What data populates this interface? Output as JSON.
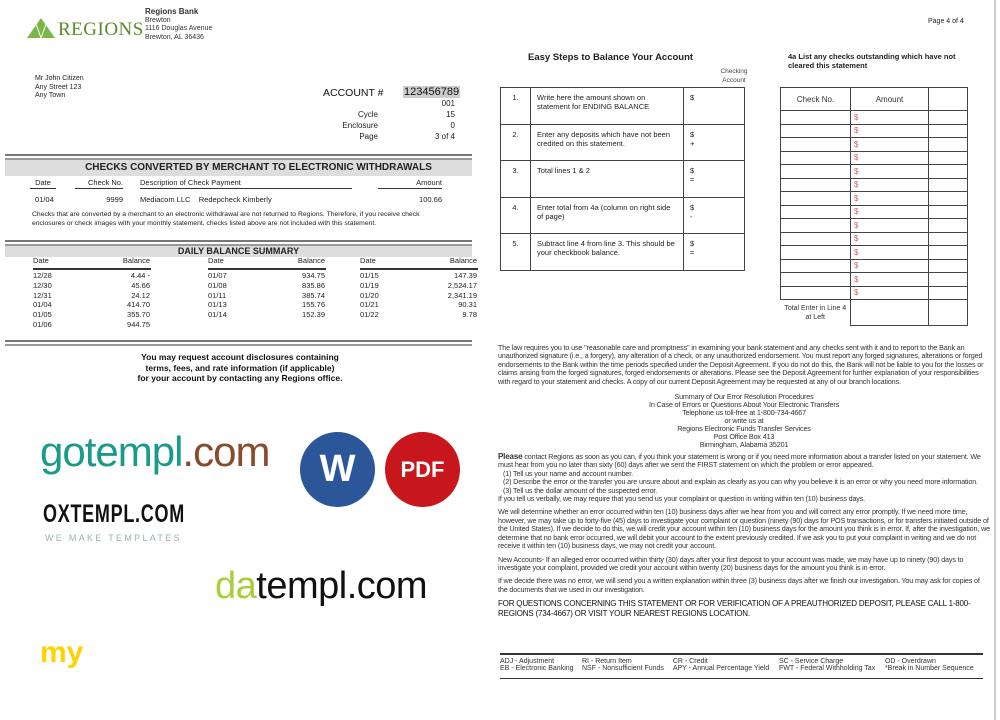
{
  "bank": {
    "logo_text": "REGIONS",
    "name": "Regions Bank",
    "branch": "Brewton",
    "street": "1116 Douglas Avenue",
    "city": "Brewton, AL 36436",
    "brand_color": "#7ab648"
  },
  "customer": {
    "name": "Mr John Citizen",
    "street": "Any Street 123",
    "town": "Any Town"
  },
  "account": {
    "label": "ACCOUNT #",
    "number": "123456789",
    "suffix": "001",
    "cycle_label": "Cycle",
    "cycle": "15",
    "enclosure_label": "Enclosure",
    "enclosure": "0",
    "page_label": "Page",
    "page": "3 of 4"
  },
  "checks": {
    "title": "CHECKS CONVERTED BY MERCHANT TO ELECTRONIC WITHDRAWALS",
    "headers": [
      "Date",
      "Check No.",
      "Description of Check Payment",
      "Amount"
    ],
    "rows": [
      {
        "date": "01/04",
        "check": "9999",
        "desc": "Mediacom LLC    Redepcheck Kimberly",
        "amount": "100.66"
      }
    ],
    "note": "Checks that are converted by a merchant to an electronic withdrawal are not returned to Regions. Therefore, if you receive check enclosures or check images with your monthly statement, checks listed above are not included with this statement."
  },
  "daily": {
    "title": "DAILY BALANCE SUMMARY",
    "date_label": "Date",
    "balance_label": "Balance",
    "columns": [
      [
        [
          "12/28",
          "4.44 -"
        ],
        [
          "12/30",
          "45.66"
        ],
        [
          "12/31",
          "24.12"
        ],
        [
          "01/04",
          "414.70"
        ],
        [
          "01/05",
          "355.70"
        ],
        [
          "01/06",
          "944.75"
        ]
      ],
      [
        [
          "01/07",
          "934.75"
        ],
        [
          "01/08",
          "835.86"
        ],
        [
          "01/11",
          "385.74"
        ],
        [
          "01/13",
          "155.76"
        ],
        [
          "01/14",
          "152.39"
        ]
      ],
      [
        [
          "01/15",
          "147.39"
        ],
        [
          "01/19",
          "2,524.17"
        ],
        [
          "01/20",
          "2,341.19"
        ],
        [
          "01/21",
          "90.31"
        ],
        [
          "01/22",
          "9.78"
        ]
      ]
    ]
  },
  "disclosure": [
    "You may request account disclosures containing",
    "terms, fees, and rate information (if applicable)",
    "for your account by contacting any Regions office."
  ],
  "steps": {
    "title": "Easy Steps to Balance Your Account",
    "col_label": "Checking Account",
    "rows": [
      {
        "n": "1.",
        "text": "Write here the amount shown on statement for ENDING BALANCE",
        "sign": ""
      },
      {
        "n": "2.",
        "text": "Enter any deposits which have not been credited on this statement.",
        "sign": "+"
      },
      {
        "n": "3.",
        "text": "Total lines 1 & 2",
        "sign": "="
      },
      {
        "n": "4.",
        "text": "Enter total from 4a (column on right side of page)",
        "sign": "-"
      },
      {
        "n": "5.",
        "text": "Subtract line 4 from line 3. This should be your checkbook balance.",
        "sign": "="
      }
    ],
    "currency": "$"
  },
  "page_right": "Page 4 of 4",
  "outstanding": {
    "title": "4a List any checks outstanding which have not cleared this statement",
    "col_check": "Check No.",
    "col_amount": "Amount",
    "total_label": "Total Enter in Line 4 at Left"
  },
  "legal": {
    "law": "The law requires you to use \"reasonable care and promptness\" in examining your bank statement and any checks sent with it and to report to the Bank an unauthorized signature (i.e., a forgery), any alteration of a check, or any unauthorized endorsement. You must report any forged signatures, alterations or forged endorsements to the Bank within the time periods specified under the Deposit Agreement. If you do not do this, the Bank will not be liable to you for the losses or claims arising from the forged signatures, forged endorsements or alterations. Please see the Deposit Agreement for further explanation of your responsibilities with regard to your statement and checks. A copy of our current Deposit Agreement may be requested at any of our branch locations.",
    "summary": [
      "Summary of Our Error Resolution Procedures",
      "In Case of Errors or Questions About Your Electronic Transfers",
      "Telephone us toll-free at 1-800-734-4667",
      "or write us at",
      "Regions Electronic Funds Transfer Services",
      "Post Office Box 413",
      "Birmingham, Alabama 35201"
    ],
    "please_lead": "Please",
    "please": "contact Regions as soon as you can, if you think your statement is wrong or if you need more information about a transfer listed on your statement. We must hear from you no later than sixty (60) days after we sent the FIRST statement on which the problem or error appeared.",
    "list": [
      "(1)  Tell us your name and account number.",
      "(2)  Describe the error or the transfer you are unsure about and explain as clearly as you can why you believe it is an error or why you need more information.",
      "(3)  Tell us the dollar amount of the suspected error."
    ],
    "verbal": "If you tell us verbally, we may require that you send us your complaint or question in writing within ten (10) business days.",
    "determine": "We will determine whether an error occurred within ten (10) business days after we hear from you and will correct any error promptly. If we need more time, however, we may take up to forty-five (45) days to investigate your complaint or question (ninety (90) days for POS transactions, or for transfers initiated outside of the United States). If we decide to do this, we will credit your account within ten (10) business days for the amount you think is in error. If, after the investigation, we determine that no bank error occurred, we will debit your account to the extent previously credited. If we ask you to put your complaint in writing and we do not receive it within ten (10) business days, we may not credit your account.",
    "new_accounts": "New Accounts- If an alleged error occurred within thirty (30) days after your first deposit to your account was made, we may have up to ninety (90) days to investigate your complaint, provided we credit your account within twenty (20) business days for the amount you think is in error.",
    "no_error": "If we decide there was no error, we will send you a written explanation within three (3) business days after we finish our investigation. You may ask for copies of the documents that we used in our investigation.",
    "questions": "FOR QUESTIONS CONCERNING THIS STATEMENT OR FOR VERIFICATION OF A PREAUTHORIZED DEPOSIT, PLEASE CALL 1-800-REGIONS (734-4667) OR VISIT YOUR NEAREST REGIONS LOCATION."
  },
  "legend": [
    [
      "ADJ - Adjustment",
      "RI - Return Item",
      "CR - Credit",
      "SC - Service Charge",
      "OD - Overdrawn"
    ],
    [
      "EB - Electronic Banking",
      "NSF - Nonsufficient Funds",
      "APY - Annual Percentage Yield",
      "FWT - Federal Withholding Tax",
      "*Break in Number Sequence"
    ]
  ],
  "watermarks": {
    "gotempl_a": "gotempl",
    "gotempl_b": ".com",
    "oxtempl": "OXTEMPL.COM",
    "oxtempl_sub": "WE MAKE TEMPLATES",
    "datempl_a": "da",
    "datempl_b": "templ.com",
    "my": "my",
    "word": "W",
    "pdf": "PDF"
  }
}
